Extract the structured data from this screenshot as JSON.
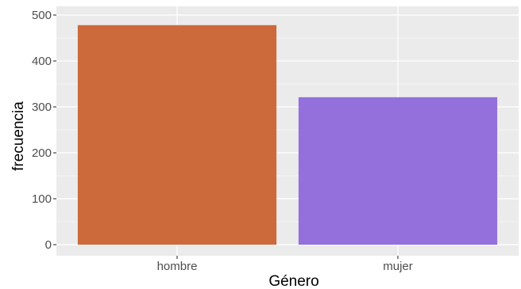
{
  "chart_data": {
    "type": "bar",
    "title": "",
    "xlabel": "Género",
    "ylabel": "frecuencia",
    "categories": [
      "hombre",
      "mujer"
    ],
    "values": [
      478,
      321
    ],
    "colors": [
      "#CC6A3C",
      "#9370DB"
    ],
    "ylim": [
      0,
      500
    ],
    "yticks": [
      0,
      100,
      200,
      300,
      400,
      500
    ],
    "grid": true,
    "legend": "none",
    "panel_background": "#EBEBEB",
    "grid_color": "#FFFFFF"
  }
}
